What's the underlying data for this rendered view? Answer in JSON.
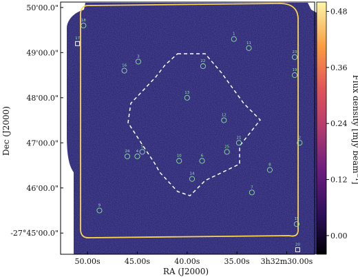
{
  "chart_data": {
    "type": "heatmap",
    "xlabel": "RA (J2000)",
    "ylabel": "Dec (J2000)",
    "colorbar_label": "Flux density [mJy beam⁻¹]",
    "x_ticks": [
      {
        "value": 50.0,
        "label": "50.00s"
      },
      {
        "value": 45.0,
        "label": "45.00s"
      },
      {
        "value": 40.0,
        "label": "40.00s"
      },
      {
        "value": 35.0,
        "label": "35.00s"
      },
      {
        "value": 30.0,
        "label": "3h32m30.00s"
      }
    ],
    "y_ticks": [
      {
        "value": 45.0,
        "label": "-27°45'00.0\""
      },
      {
        "value": 46.0,
        "label": "46'00.0\""
      },
      {
        "value": 47.0,
        "label": "47'00.0\""
      },
      {
        "value": 48.0,
        "label": "48'00.0\""
      },
      {
        "value": 49.0,
        "label": "49'00.0\""
      },
      {
        "value": 50.0,
        "label": "50'00.0\""
      }
    ],
    "xlim": [
      52.7,
      27.2
    ],
    "ylim": [
      50.12,
      44.53
    ],
    "colorbar": {
      "range": [
        -0.04,
        0.5
      ],
      "ticks": [
        0.0,
        0.12,
        0.24,
        0.36,
        0.48
      ],
      "tick_labels": [
        "0.00",
        "0.12",
        "0.24",
        "0.36",
        "0.48"
      ]
    },
    "sources": [
      {
        "id": "1",
        "ra": 35.3,
        "dec": 49.3,
        "shape": "circle"
      },
      {
        "id": "2",
        "ra": 28.7,
        "dec": 47.0,
        "shape": "circle"
      },
      {
        "id": "3",
        "ra": 44.9,
        "dec": 48.8,
        "shape": "circle"
      },
      {
        "id": "4",
        "ra": 45.0,
        "dec": 46.7,
        "shape": "circle"
      },
      {
        "id": "5",
        "ra": 44.5,
        "dec": 46.8,
        "shape": "circle"
      },
      {
        "id": "6",
        "ra": 38.5,
        "dec": 46.6,
        "shape": "circle"
      },
      {
        "id": "7",
        "ra": 33.5,
        "dec": 45.9,
        "shape": "circle"
      },
      {
        "id": "8",
        "ra": 31.7,
        "dec": 46.4,
        "shape": "circle"
      },
      {
        "id": "9",
        "ra": 48.8,
        "dec": 45.5,
        "shape": "circle"
      },
      {
        "id": "10",
        "ra": 40.8,
        "dec": 46.6,
        "shape": "circle"
      },
      {
        "id": "11",
        "ra": 33.8,
        "dec": 49.1,
        "shape": "circle"
      },
      {
        "id": "12",
        "ra": 36.3,
        "dec": 47.5,
        "shape": "circle"
      },
      {
        "id": "13",
        "ra": 40.0,
        "dec": 48.0,
        "shape": "circle"
      },
      {
        "id": "14",
        "ra": 39.5,
        "dec": 46.2,
        "shape": "circle"
      },
      {
        "id": "15",
        "ra": 29.0,
        "dec": 45.2,
        "shape": "circle"
      },
      {
        "id": "16",
        "ra": 46.3,
        "dec": 48.6,
        "shape": "circle"
      },
      {
        "id": "17",
        "ra": 51.0,
        "dec": 49.2,
        "shape": "square"
      },
      {
        "id": "18",
        "ra": 50.4,
        "dec": 49.6,
        "shape": "circle"
      },
      {
        "id": "19",
        "ra": 29.2,
        "dec": 48.5,
        "shape": "circle"
      },
      {
        "id": "20",
        "ra": 28.9,
        "dec": 44.63,
        "shape": "square"
      },
      {
        "id": "21",
        "ra": 34.8,
        "dec": 47.0,
        "shape": "circle"
      },
      {
        "id": "22",
        "ra": 38.4,
        "dec": 48.7,
        "shape": "circle"
      },
      {
        "id": "23",
        "ra": 29.2,
        "dec": 48.9,
        "shape": "circle"
      },
      {
        "id": "24",
        "ra": 46.0,
        "dec": 46.7,
        "shape": "circle"
      },
      {
        "id": "25",
        "ra": 36.0,
        "dec": 46.8,
        "shape": "circle"
      }
    ],
    "colors": {
      "background": "#2f2b78",
      "outer_region": "#ffd84a",
      "inner_region": "#ffffff",
      "source_marker": "#8fe3a6"
    },
    "grid": false
  }
}
